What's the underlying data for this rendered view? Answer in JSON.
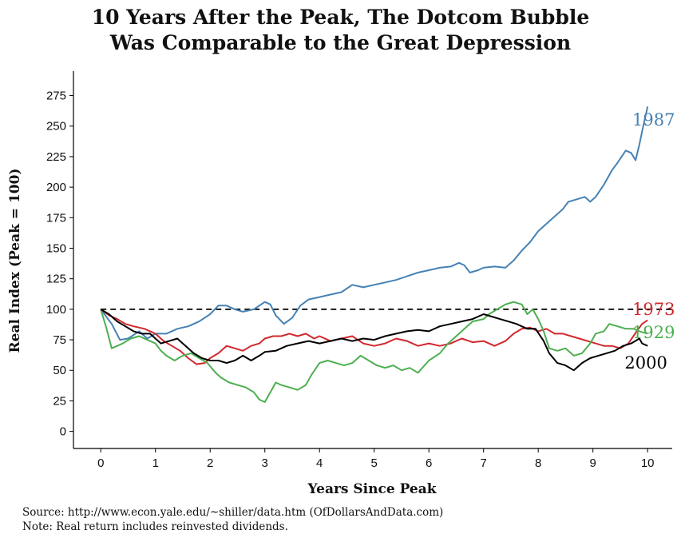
{
  "chart_data": {
    "type": "line",
    "title_line1": "10 Years After the Peak, The Dotcom Bubble",
    "title_line2": "Was Comparable to the Great Depression",
    "xlabel": "Years Since Peak",
    "ylabel": "Real Index (Peak = 100)",
    "xlim": [
      -0.5,
      10.45
    ],
    "ylim": [
      -14,
      295
    ],
    "xticks": [
      0,
      1,
      2,
      3,
      4,
      5,
      6,
      7,
      8,
      9,
      10
    ],
    "yticks": [
      0,
      25,
      50,
      75,
      100,
      125,
      150,
      175,
      200,
      225,
      250,
      275
    ],
    "reference_line": {
      "y": 100,
      "style": "dashed"
    },
    "grid": false,
    "legend": "direct labels at line ends",
    "series": [
      {
        "name": "1987",
        "color": "#4682B4",
        "points": [
          [
            0,
            100
          ],
          [
            0.2,
            88
          ],
          [
            0.35,
            75
          ],
          [
            0.5,
            76
          ],
          [
            0.7,
            82
          ],
          [
            0.85,
            76
          ],
          [
            1,
            80
          ],
          [
            1.2,
            80
          ],
          [
            1.4,
            84
          ],
          [
            1.6,
            86
          ],
          [
            1.8,
            90
          ],
          [
            2,
            96
          ],
          [
            2.15,
            103
          ],
          [
            2.3,
            103
          ],
          [
            2.45,
            100
          ],
          [
            2.6,
            98
          ],
          [
            2.8,
            100
          ],
          [
            3,
            106
          ],
          [
            3.1,
            104
          ],
          [
            3.2,
            95
          ],
          [
            3.35,
            88
          ],
          [
            3.5,
            93
          ],
          [
            3.65,
            103
          ],
          [
            3.8,
            108
          ],
          [
            4,
            110
          ],
          [
            4.2,
            112
          ],
          [
            4.4,
            114
          ],
          [
            4.6,
            120
          ],
          [
            4.8,
            118
          ],
          [
            5,
            120
          ],
          [
            5.2,
            122
          ],
          [
            5.4,
            124
          ],
          [
            5.6,
            127
          ],
          [
            5.8,
            130
          ],
          [
            6,
            132
          ],
          [
            6.2,
            134
          ],
          [
            6.4,
            135
          ],
          [
            6.55,
            138
          ],
          [
            6.65,
            136
          ],
          [
            6.75,
            130
          ],
          [
            6.9,
            132
          ],
          [
            7,
            134
          ],
          [
            7.2,
            135
          ],
          [
            7.4,
            134
          ],
          [
            7.55,
            140
          ],
          [
            7.7,
            148
          ],
          [
            7.85,
            155
          ],
          [
            8,
            164
          ],
          [
            8.15,
            170
          ],
          [
            8.3,
            176
          ],
          [
            8.45,
            182
          ],
          [
            8.55,
            188
          ],
          [
            8.7,
            190
          ],
          [
            8.85,
            192
          ],
          [
            8.95,
            188
          ],
          [
            9.05,
            192
          ],
          [
            9.2,
            202
          ],
          [
            9.35,
            214
          ],
          [
            9.45,
            220
          ],
          [
            9.6,
            230
          ],
          [
            9.7,
            228
          ],
          [
            9.78,
            222
          ],
          [
            9.85,
            235
          ],
          [
            9.92,
            250
          ],
          [
            10,
            266
          ]
        ]
      },
      {
        "name": "1973",
        "color": "#D1282E",
        "points": [
          [
            0,
            100
          ],
          [
            0.15,
            95
          ],
          [
            0.3,
            92
          ],
          [
            0.45,
            88
          ],
          [
            0.6,
            86
          ],
          [
            0.8,
            84
          ],
          [
            1,
            80
          ],
          [
            1.15,
            74
          ],
          [
            1.3,
            70
          ],
          [
            1.45,
            66
          ],
          [
            1.6,
            60
          ],
          [
            1.75,
            55
          ],
          [
            1.9,
            56
          ],
          [
            2,
            60
          ],
          [
            2.15,
            64
          ],
          [
            2.3,
            70
          ],
          [
            2.45,
            68
          ],
          [
            2.6,
            66
          ],
          [
            2.75,
            70
          ],
          [
            2.9,
            72
          ],
          [
            3,
            76
          ],
          [
            3.15,
            78
          ],
          [
            3.3,
            78
          ],
          [
            3.45,
            80
          ],
          [
            3.6,
            78
          ],
          [
            3.75,
            80
          ],
          [
            3.9,
            76
          ],
          [
            4,
            78
          ],
          [
            4.2,
            74
          ],
          [
            4.4,
            76
          ],
          [
            4.6,
            78
          ],
          [
            4.8,
            72
          ],
          [
            5,
            70
          ],
          [
            5.2,
            72
          ],
          [
            5.4,
            76
          ],
          [
            5.6,
            74
          ],
          [
            5.8,
            70
          ],
          [
            6,
            72
          ],
          [
            6.2,
            70
          ],
          [
            6.4,
            72
          ],
          [
            6.6,
            76
          ],
          [
            6.8,
            73
          ],
          [
            7,
            74
          ],
          [
            7.2,
            70
          ],
          [
            7.4,
            74
          ],
          [
            7.55,
            80
          ],
          [
            7.7,
            84
          ],
          [
            7.85,
            85
          ],
          [
            8,
            82
          ],
          [
            8.15,
            84
          ],
          [
            8.3,
            80
          ],
          [
            8.45,
            80
          ],
          [
            8.6,
            78
          ],
          [
            8.75,
            76
          ],
          [
            8.9,
            74
          ],
          [
            9.05,
            72
          ],
          [
            9.2,
            70
          ],
          [
            9.35,
            70
          ],
          [
            9.5,
            68
          ],
          [
            9.65,
            72
          ],
          [
            9.8,
            82
          ],
          [
            9.9,
            88
          ],
          [
            10,
            91
          ]
        ]
      },
      {
        "name": "1929",
        "color": "#4CAF50",
        "points": [
          [
            0,
            100
          ],
          [
            0.1,
            85
          ],
          [
            0.2,
            68
          ],
          [
            0.3,
            70
          ],
          [
            0.4,
            72
          ],
          [
            0.55,
            76
          ],
          [
            0.7,
            78
          ],
          [
            0.85,
            75
          ],
          [
            1,
            72
          ],
          [
            1.1,
            66
          ],
          [
            1.2,
            62
          ],
          [
            1.35,
            58
          ],
          [
            1.5,
            62
          ],
          [
            1.65,
            64
          ],
          [
            1.8,
            60
          ],
          [
            1.95,
            56
          ],
          [
            2.1,
            48
          ],
          [
            2.2,
            44
          ],
          [
            2.35,
            40
          ],
          [
            2.5,
            38
          ],
          [
            2.65,
            36
          ],
          [
            2.8,
            32
          ],
          [
            2.9,
            26
          ],
          [
            3,
            24
          ],
          [
            3.1,
            32
          ],
          [
            3.2,
            40
          ],
          [
            3.3,
            38
          ],
          [
            3.45,
            36
          ],
          [
            3.6,
            34
          ],
          [
            3.75,
            38
          ],
          [
            3.85,
            46
          ],
          [
            4,
            56
          ],
          [
            4.15,
            58
          ],
          [
            4.3,
            56
          ],
          [
            4.45,
            54
          ],
          [
            4.6,
            56
          ],
          [
            4.75,
            62
          ],
          [
            4.9,
            58
          ],
          [
            5.05,
            54
          ],
          [
            5.2,
            52
          ],
          [
            5.35,
            54
          ],
          [
            5.5,
            50
          ],
          [
            5.65,
            52
          ],
          [
            5.8,
            48
          ],
          [
            6,
            58
          ],
          [
            6.2,
            64
          ],
          [
            6.35,
            72
          ],
          [
            6.5,
            78
          ],
          [
            6.65,
            84
          ],
          [
            6.8,
            90
          ],
          [
            7,
            92
          ],
          [
            7.1,
            96
          ],
          [
            7.25,
            100
          ],
          [
            7.4,
            104
          ],
          [
            7.55,
            106
          ],
          [
            7.7,
            104
          ],
          [
            7.8,
            96
          ],
          [
            7.9,
            100
          ],
          [
            8,
            92
          ],
          [
            8.1,
            82
          ],
          [
            8.2,
            68
          ],
          [
            8.35,
            66
          ],
          [
            8.5,
            68
          ],
          [
            8.65,
            62
          ],
          [
            8.8,
            64
          ],
          [
            8.95,
            72
          ],
          [
            9.05,
            80
          ],
          [
            9.2,
            82
          ],
          [
            9.3,
            88
          ],
          [
            9.45,
            86
          ],
          [
            9.6,
            84
          ],
          [
            9.75,
            84
          ],
          [
            9.85,
            82
          ],
          [
            10,
            80
          ]
        ]
      },
      {
        "name": "2000",
        "color": "#000000",
        "points": [
          [
            0,
            100
          ],
          [
            0.15,
            96
          ],
          [
            0.3,
            90
          ],
          [
            0.45,
            86
          ],
          [
            0.6,
            82
          ],
          [
            0.75,
            80
          ],
          [
            0.9,
            80
          ],
          [
            1,
            76
          ],
          [
            1.1,
            72
          ],
          [
            1.25,
            74
          ],
          [
            1.4,
            76
          ],
          [
            1.55,
            70
          ],
          [
            1.7,
            64
          ],
          [
            1.85,
            60
          ],
          [
            2,
            58
          ],
          [
            2.15,
            58
          ],
          [
            2.3,
            56
          ],
          [
            2.45,
            58
          ],
          [
            2.6,
            62
          ],
          [
            2.75,
            58
          ],
          [
            2.9,
            62
          ],
          [
            3,
            65
          ],
          [
            3.2,
            66
          ],
          [
            3.4,
            70
          ],
          [
            3.6,
            72
          ],
          [
            3.8,
            74
          ],
          [
            4,
            72
          ],
          [
            4.2,
            74
          ],
          [
            4.4,
            76
          ],
          [
            4.6,
            74
          ],
          [
            4.8,
            76
          ],
          [
            5,
            75
          ],
          [
            5.2,
            78
          ],
          [
            5.4,
            80
          ],
          [
            5.6,
            82
          ],
          [
            5.8,
            83
          ],
          [
            6,
            82
          ],
          [
            6.2,
            86
          ],
          [
            6.4,
            88
          ],
          [
            6.6,
            90
          ],
          [
            6.8,
            92
          ],
          [
            7,
            96
          ],
          [
            7.15,
            94
          ],
          [
            7.3,
            92
          ],
          [
            7.45,
            90
          ],
          [
            7.6,
            88
          ],
          [
            7.8,
            84
          ],
          [
            7.95,
            84
          ],
          [
            8.1,
            74
          ],
          [
            8.2,
            64
          ],
          [
            8.35,
            56
          ],
          [
            8.5,
            54
          ],
          [
            8.65,
            50
          ],
          [
            8.8,
            56
          ],
          [
            8.95,
            60
          ],
          [
            9.1,
            62
          ],
          [
            9.25,
            64
          ],
          [
            9.4,
            66
          ],
          [
            9.55,
            70
          ],
          [
            9.7,
            72
          ],
          [
            9.85,
            76
          ],
          [
            9.9,
            72
          ],
          [
            10,
            70
          ]
        ]
      }
    ],
    "labels": [
      {
        "name": "1987",
        "text": "1987",
        "x": 9.72,
        "y": 255
      },
      {
        "name": "1973",
        "text": "1973",
        "x": 9.72,
        "y": 100
      },
      {
        "name": "1929",
        "text": "1929",
        "x": 9.72,
        "y": 81
      },
      {
        "name": "2000",
        "text": "2000",
        "x": 9.58,
        "y": 56
      }
    ]
  },
  "footer": {
    "source": "Source:  http://www.econ.yale.edu/~shiller/data.htm (OfDollarsAndData.com)",
    "note": "Note:  Real return includes reinvested dividends."
  }
}
